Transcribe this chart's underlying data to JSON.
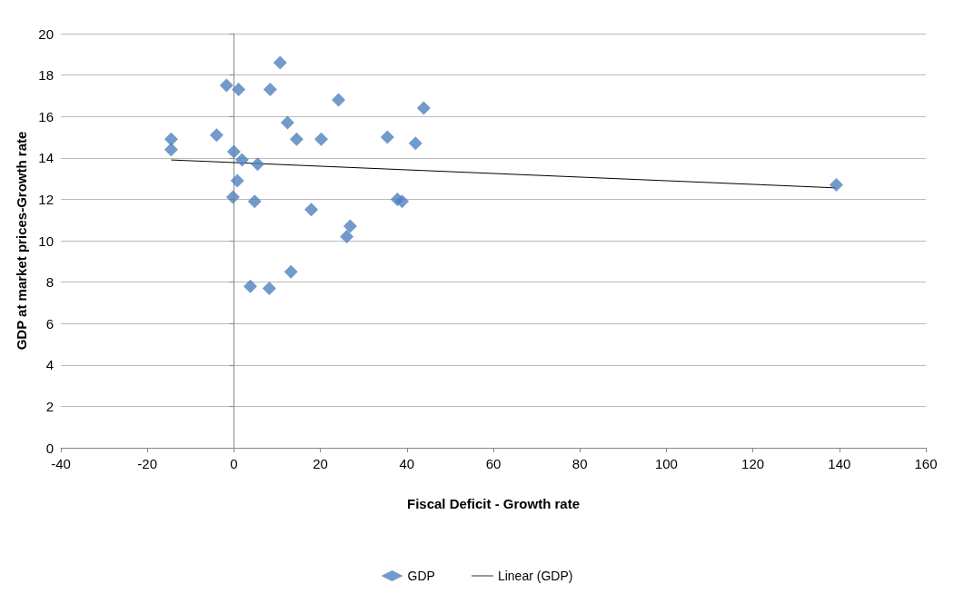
{
  "chart_data": {
    "type": "scatter",
    "xlabel": "Fiscal Deficit - Growth rate",
    "ylabel": "GDP at market prices-Growth rate",
    "series": [
      {
        "name": "GDP",
        "color": "#4f81bd",
        "marker": "diamond",
        "x": [
          -14.5,
          -14.5,
          -1.7,
          1.1,
          8.4,
          10.7,
          24.2,
          43.9,
          -4.0,
          12.4,
          14.5,
          20.2,
          35.5,
          42.0,
          0,
          1.9,
          5.5,
          0.8,
          -0.2,
          4.8,
          17.9,
          37.8,
          38.9,
          26.9,
          26.1,
          13.2,
          3.8,
          8.2,
          139.3
        ],
        "values": [
          14.9,
          14.4,
          17.5,
          17.3,
          17.3,
          18.6,
          16.8,
          16.4,
          15.1,
          15.7,
          14.9,
          14.9,
          15.0,
          14.7,
          14.3,
          13.9,
          13.7,
          12.9,
          12.1,
          11.9,
          11.5,
          12.0,
          11.9,
          10.7,
          10.2,
          8.5,
          7.8,
          7.7,
          12.7
        ]
      },
      {
        "name": "Linear (GDP)",
        "type": "line",
        "color": "#000000",
        "marker": "none",
        "line_style": "solid",
        "x": [
          -14.5,
          139.3
        ],
        "values": [
          13.9,
          12.55
        ]
      }
    ],
    "xlim": [
      -40,
      160
    ],
    "xticks": [
      -40,
      -20,
      0,
      20,
      40,
      60,
      80,
      100,
      120,
      140,
      160
    ],
    "ylim": [
      0,
      20
    ],
    "yticks": [
      0,
      2,
      4,
      6,
      8,
      10,
      12,
      14,
      16,
      18,
      20
    ],
    "grid": "y",
    "legend": "bottom"
  }
}
